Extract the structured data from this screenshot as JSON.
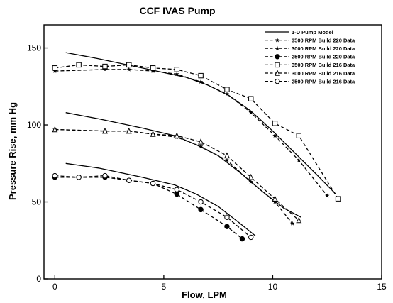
{
  "chart_data": {
    "type": "line",
    "title": "CCF IVAS Pump",
    "xlabel": "Flow, LPM",
    "ylabel": "Pressure Rise,    mm Hg",
    "xlim": [
      -0.5,
      15
    ],
    "ylim": [
      0,
      165
    ],
    "xticks": [
      "0",
      "5",
      "10",
      "15"
    ],
    "yticks": [
      "0",
      "50",
      "100",
      "150"
    ],
    "grid": false,
    "legend_position": "top-right",
    "series": [
      {
        "name": "1-D Pump Model",
        "style": "solid",
        "marker": "none",
        "segments": [
          {
            "x": [
              0.5,
              2,
              4,
              6,
              7,
              8,
              9,
              10,
              11,
              12,
              12.9
            ],
            "y": [
              147,
              143,
              137,
              131,
              126,
              119,
              109,
              96,
              82,
              68,
              55
            ]
          },
          {
            "x": [
              0.5,
              2,
              4,
              5.5,
              6.5,
              7.5,
              8.5,
              9.5,
              10.5,
              11.3
            ],
            "y": [
              108,
              104,
              98,
              93,
              87,
              80,
              69,
              57,
              46,
              40
            ]
          },
          {
            "x": [
              0.5,
              2,
              4,
              5.5,
              6.5,
              7.5,
              8.5,
              9.2
            ],
            "y": [
              75,
              72,
              66,
              61,
              55,
              47,
              36,
              28
            ]
          }
        ]
      },
      {
        "name": "3500 RPM Build 220 Data",
        "style": "dashed",
        "marker": "star",
        "x": [
          0,
          2.3,
          3.4,
          4.5,
          5.6,
          6.7,
          7.9,
          9.0,
          10.1,
          11.2,
          12.5
        ],
        "y": [
          135,
          136,
          136,
          135,
          133,
          128,
          120,
          108,
          93,
          77,
          54
        ]
      },
      {
        "name": "3000 RPM Build 220 Data",
        "style": "dashed",
        "marker": "star",
        "x": [
          0,
          2.3,
          3.4,
          4.5,
          5.6,
          6.7,
          7.9,
          9.0,
          10.1,
          10.9
        ],
        "y": [
          97,
          96,
          96,
          94,
          92,
          86,
          77,
          63,
          50,
          36
        ]
      },
      {
        "name": "2500 RPM Build 220 Data",
        "style": "dashed",
        "marker": "filled-circle",
        "x": [
          0,
          1.1,
          2.3,
          3.4,
          4.5,
          5.6,
          6.7,
          7.9,
          8.6
        ],
        "y": [
          66,
          66,
          66,
          64,
          62,
          55,
          45,
          34,
          26
        ]
      },
      {
        "name": "3500 RPM Build 216 Data",
        "style": "dashed",
        "marker": "square",
        "x": [
          0,
          1.1,
          2.3,
          3.4,
          4.5,
          5.6,
          6.7,
          7.9,
          9.0,
          10.1,
          11.2,
          13.0
        ],
        "y": [
          137,
          139,
          138,
          139,
          137,
          136,
          132,
          123,
          117,
          101,
          93,
          52
        ]
      },
      {
        "name": "3000 RPM Build 216 Data",
        "style": "dashed",
        "marker": "triangle",
        "x": [
          0,
          2.3,
          3.4,
          4.5,
          5.6,
          6.7,
          7.9,
          9.0,
          10.1,
          11.2
        ],
        "y": [
          97,
          96,
          96,
          94,
          93,
          89,
          80,
          66,
          52,
          38
        ]
      },
      {
        "name": "2500 RPM Build 216 Data",
        "style": "dashed",
        "marker": "open-circle",
        "x": [
          0,
          1.1,
          2.3,
          3.4,
          4.5,
          5.6,
          6.7,
          7.9,
          9.0
        ],
        "y": [
          67,
          66,
          67,
          64,
          62,
          58,
          50,
          40,
          27
        ]
      }
    ]
  }
}
